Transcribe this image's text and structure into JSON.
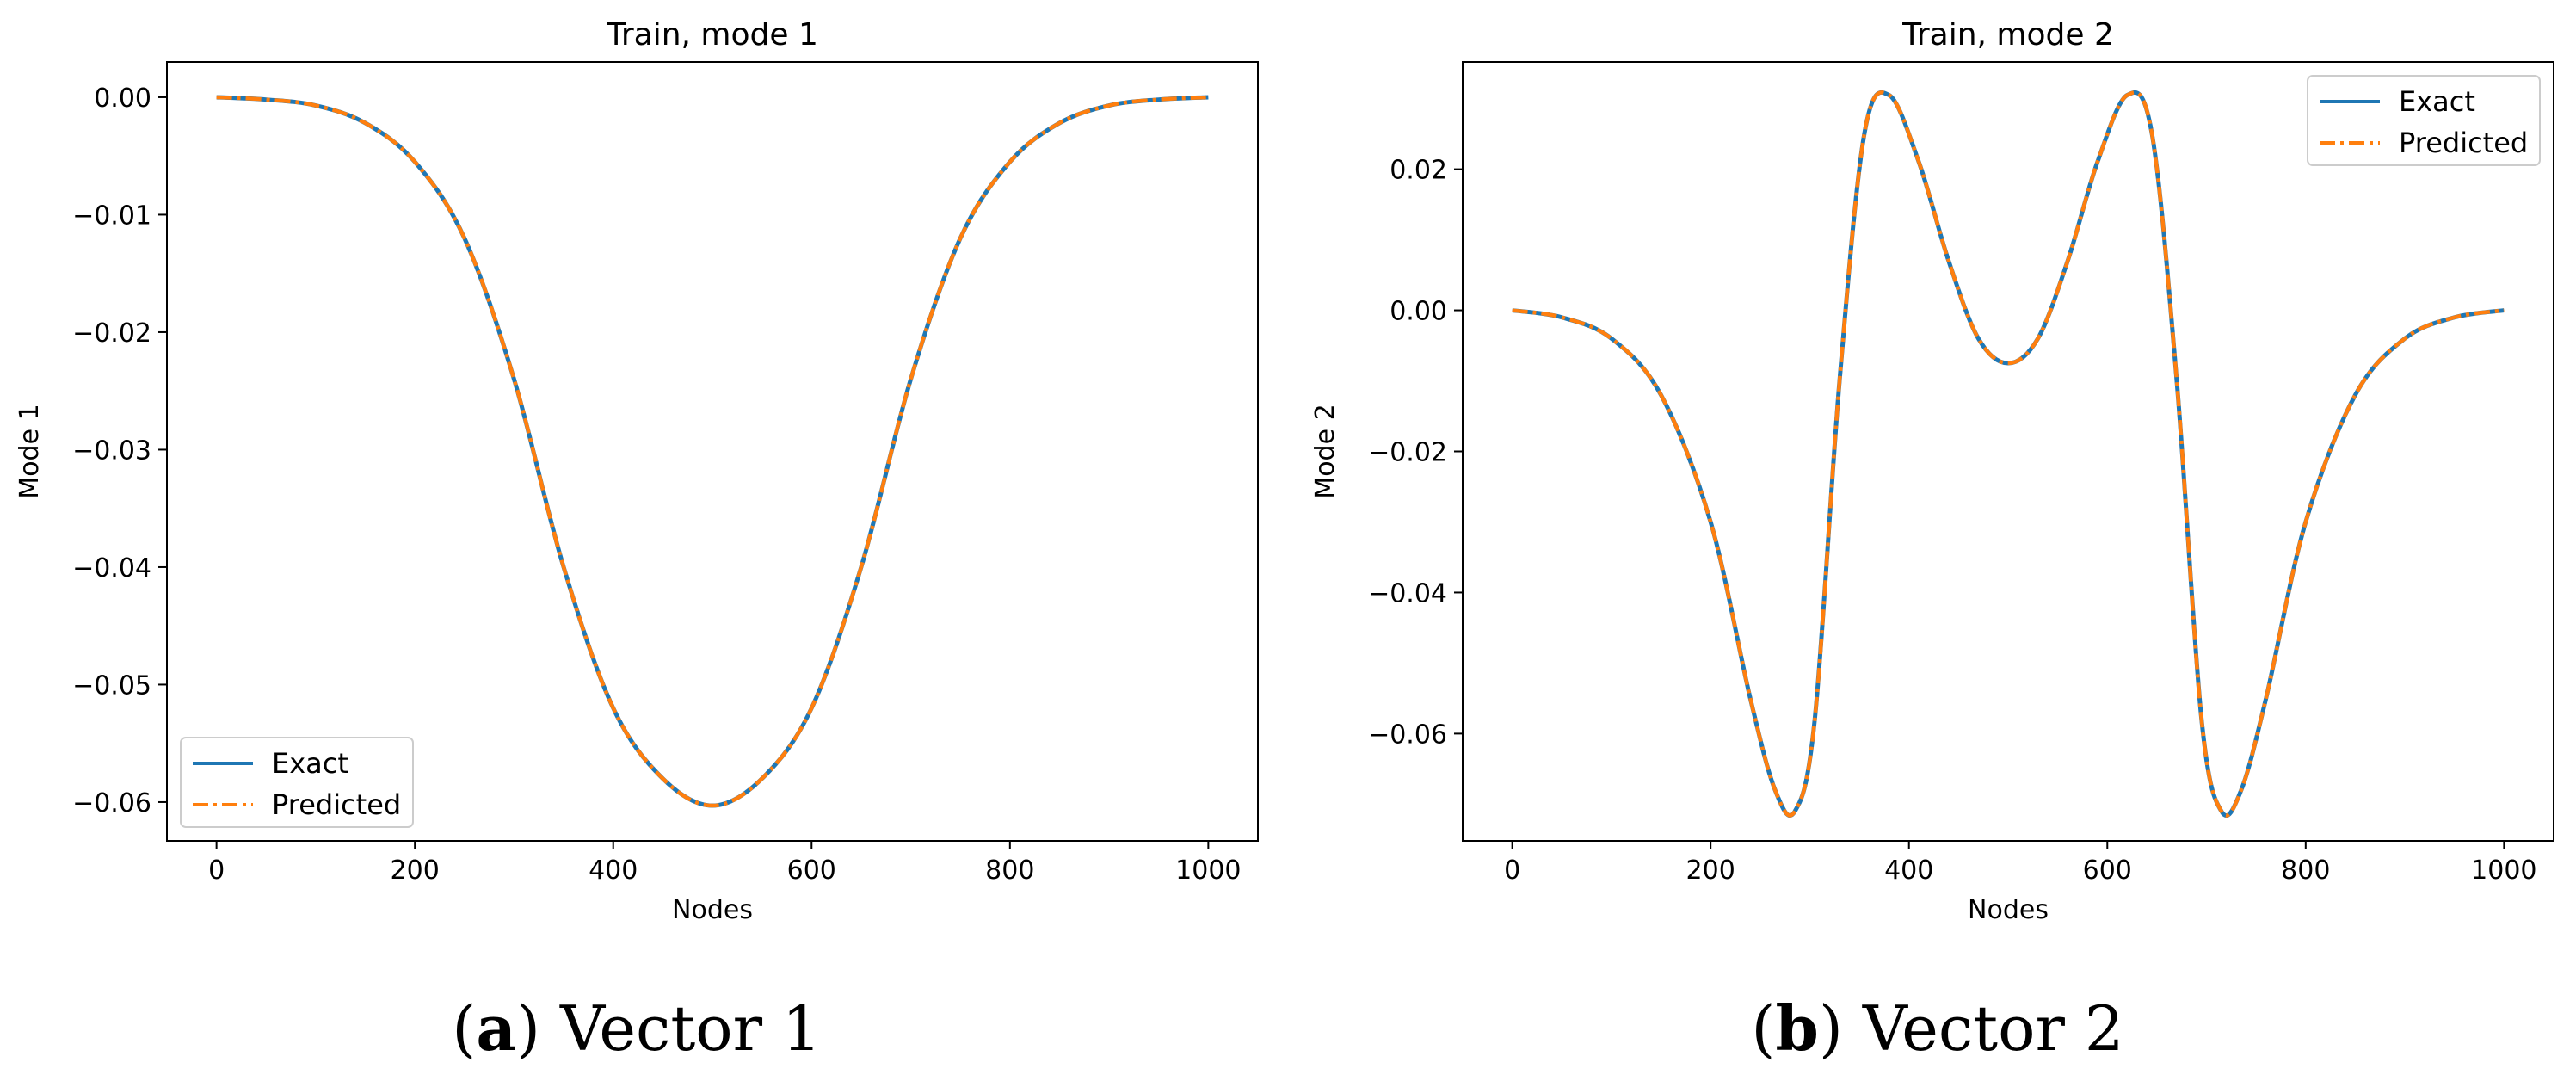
{
  "chart_data": [
    {
      "type": "line",
      "title": "Train, mode 1",
      "xlabel": "Nodes",
      "ylabel": "Mode 1",
      "xlim": [
        -50,
        1050
      ],
      "ylim": [
        -0.0633,
        0.003
      ],
      "xticks": [
        0,
        200,
        400,
        600,
        800,
        1000
      ],
      "yticks": [
        0.0,
        -0.01,
        -0.02,
        -0.03,
        -0.04,
        -0.05,
        -0.06
      ],
      "ytick_labels": [
        "0.00",
        "−0.01",
        "−0.02",
        "−0.03",
        "−0.04",
        "−0.05",
        "−0.06"
      ],
      "legend_position": "lower-left",
      "grid": false,
      "series": [
        {
          "name": "Exact",
          "color": "#1f77b4",
          "style": "solid",
          "x": [
            0,
            50,
            100,
            150,
            200,
            250,
            300,
            350,
            400,
            450,
            500,
            550,
            600,
            650,
            700,
            750,
            800,
            850,
            900,
            950,
            1000
          ],
          "values": [
            0.0,
            -0.0002,
            -0.0007,
            -0.0022,
            -0.0055,
            -0.012,
            -0.024,
            -0.04,
            -0.052,
            -0.058,
            -0.0603,
            -0.058,
            -0.052,
            -0.04,
            -0.024,
            -0.012,
            -0.0055,
            -0.0022,
            -0.0007,
            -0.0002,
            0.0
          ]
        },
        {
          "name": "Predicted",
          "color": "#ff7f0e",
          "style": "dashdot",
          "x": [
            0,
            50,
            100,
            150,
            200,
            250,
            300,
            350,
            400,
            450,
            500,
            550,
            600,
            650,
            700,
            750,
            800,
            850,
            900,
            950,
            1000
          ],
          "values": [
            0.0,
            -0.0002,
            -0.0007,
            -0.0022,
            -0.0055,
            -0.012,
            -0.024,
            -0.04,
            -0.052,
            -0.058,
            -0.0603,
            -0.058,
            -0.052,
            -0.04,
            -0.024,
            -0.012,
            -0.0055,
            -0.0022,
            -0.0007,
            -0.0002,
            0.0
          ]
        }
      ]
    },
    {
      "type": "line",
      "title": "Train, mode 2",
      "xlabel": "Nodes",
      "ylabel": "Mode 2",
      "xlim": [
        -50,
        1050
      ],
      "ylim": [
        -0.0752,
        0.0352
      ],
      "xticks": [
        0,
        200,
        400,
        600,
        800,
        1000
      ],
      "yticks": [
        0.02,
        0.0,
        -0.02,
        -0.04,
        -0.06
      ],
      "ytick_labels": [
        "0.02",
        "0.00",
        "−0.02",
        "−0.04",
        "−0.06"
      ],
      "legend_position": "top-right",
      "grid": false,
      "series": [
        {
          "name": "Exact",
          "color": "#1f77b4",
          "style": "solid",
          "x": [
            0,
            50,
            100,
            150,
            200,
            240,
            265,
            285,
            305,
            330,
            355,
            380,
            410,
            440,
            470,
            500,
            530,
            560,
            590,
            620,
            645,
            670,
            695,
            715,
            735,
            760,
            800,
            850,
            900,
            950,
            1000
          ],
          "values": [
            0.0,
            -0.001,
            -0.004,
            -0.012,
            -0.03,
            -0.055,
            -0.068,
            -0.071,
            -0.058,
            -0.01,
            0.025,
            0.0305,
            0.021,
            0.007,
            -0.004,
            -0.0075,
            -0.004,
            0.007,
            0.021,
            0.0305,
            0.025,
            -0.01,
            -0.058,
            -0.071,
            -0.068,
            -0.055,
            -0.03,
            -0.012,
            -0.004,
            -0.001,
            0.0
          ]
        },
        {
          "name": "Predicted",
          "color": "#ff7f0e",
          "style": "dashdot",
          "x": [
            0,
            50,
            100,
            150,
            200,
            240,
            265,
            285,
            305,
            330,
            355,
            380,
            410,
            440,
            470,
            500,
            530,
            560,
            590,
            620,
            645,
            670,
            695,
            715,
            735,
            760,
            800,
            850,
            900,
            950,
            1000
          ],
          "values": [
            0.0,
            -0.001,
            -0.004,
            -0.012,
            -0.03,
            -0.055,
            -0.068,
            -0.071,
            -0.058,
            -0.01,
            0.025,
            0.0305,
            0.021,
            0.007,
            -0.004,
            -0.0075,
            -0.004,
            0.007,
            0.021,
            0.0305,
            0.025,
            -0.01,
            -0.058,
            -0.071,
            -0.068,
            -0.055,
            -0.03,
            -0.012,
            -0.004,
            -0.001,
            0.0
          ]
        }
      ]
    }
  ],
  "captions": [
    {
      "label": "a",
      "text": " Vector 1"
    },
    {
      "label": "b",
      "text": " Vector 2"
    }
  ]
}
